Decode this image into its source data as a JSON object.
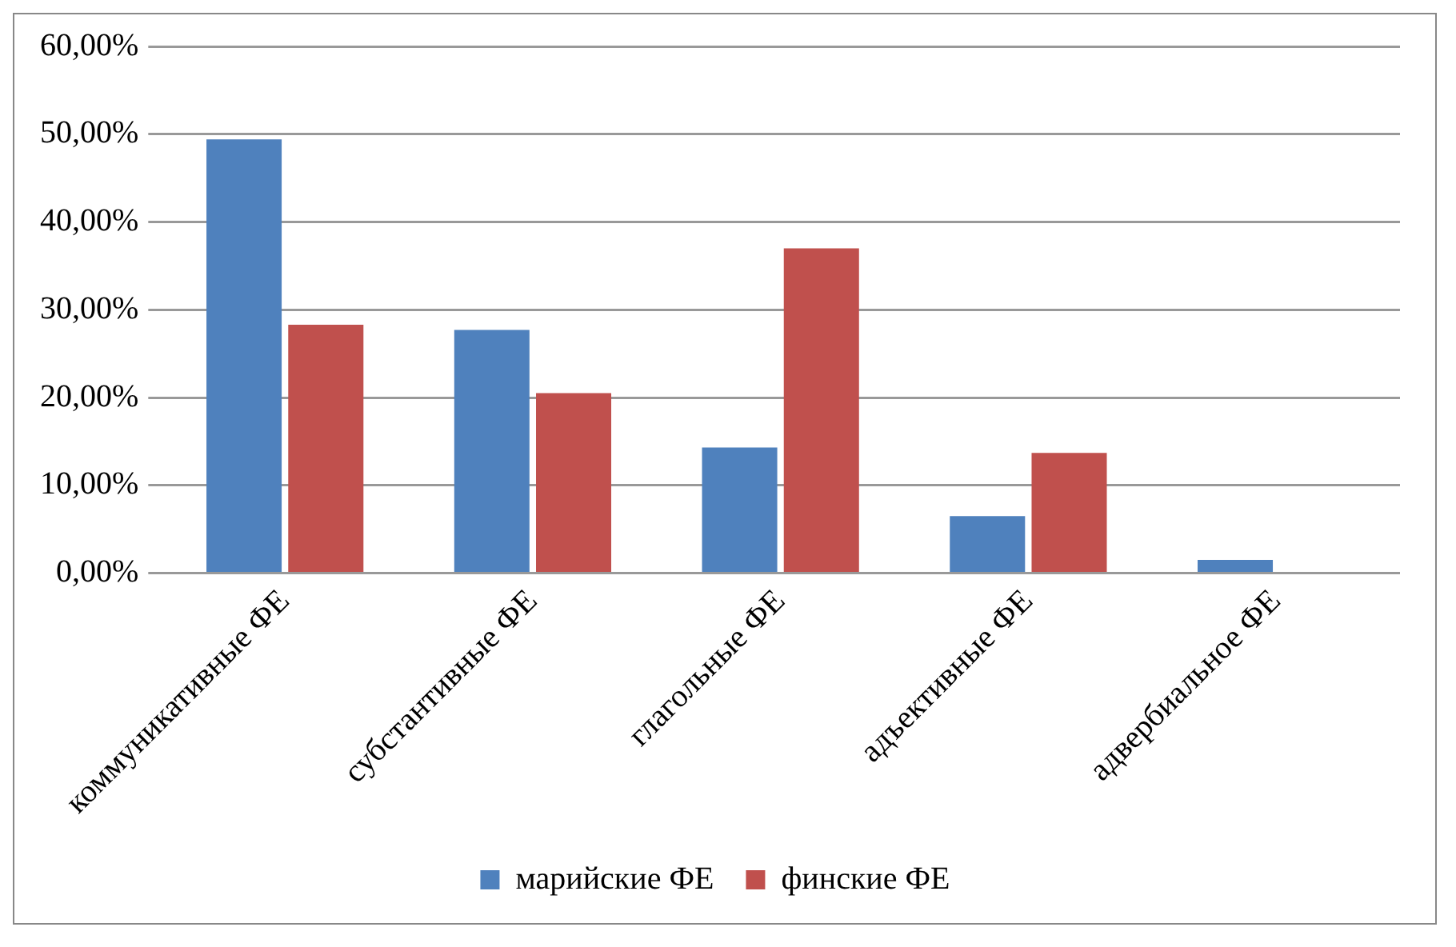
{
  "chart_data": {
    "type": "bar",
    "categories": [
      "коммуникативные ФЕ",
      "субстантивные ФЕ",
      "глагольные ФЕ",
      "адъективные ФЕ",
      "адвербиальное ФЕ"
    ],
    "series": [
      {
        "name": "марийские ФЕ",
        "color": "#4f81bd",
        "values": [
          49.4,
          27.7,
          14.3,
          6.5,
          1.5
        ]
      },
      {
        "name": "финские ФЕ",
        "color": "#c0504d",
        "values": [
          28.3,
          20.5,
          37.0,
          13.7,
          0
        ]
      }
    ],
    "ylim": [
      0,
      60
    ],
    "yticks": [
      {
        "value": 0,
        "label": "0,00%"
      },
      {
        "value": 10,
        "label": "10,00%"
      },
      {
        "value": 20,
        "label": "20,00%"
      },
      {
        "value": 30,
        "label": "30,00%"
      },
      {
        "value": 40,
        "label": "40,00%"
      },
      {
        "value": 50,
        "label": "50,00%"
      },
      {
        "value": 60,
        "label": "60,00%"
      }
    ],
    "grid": "y",
    "legend": "bottom"
  }
}
